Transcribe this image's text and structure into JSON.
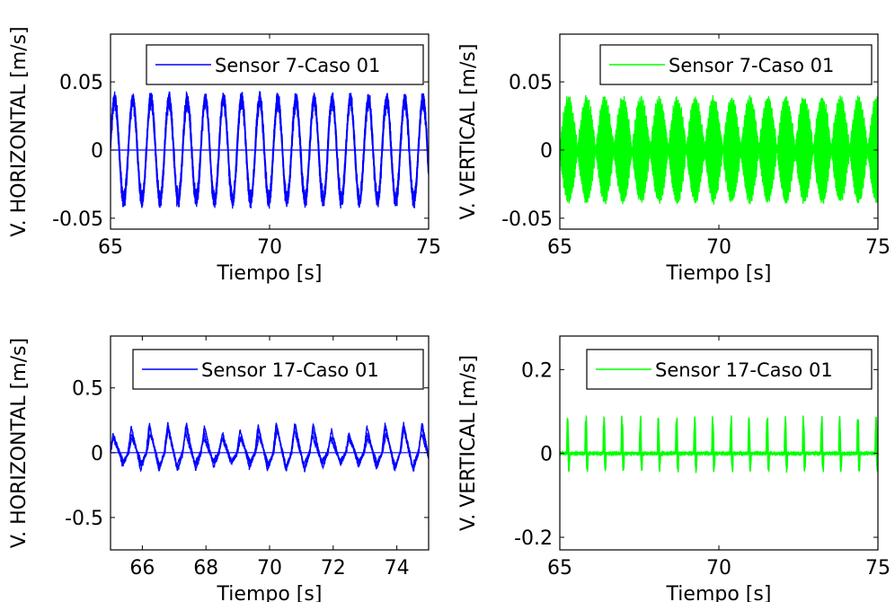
{
  "chart_data": [
    {
      "type": "line",
      "xlabel": "Tiempo [s]",
      "ylabel": "V. HORIZONTAL [m/s]",
      "xlim": [
        65,
        75
      ],
      "ylim": [
        -0.058,
        0.085
      ],
      "xticks": [
        65,
        70,
        75
      ],
      "xtick_labels": [
        "65",
        "70",
        "75"
      ],
      "yticks": [
        -0.05,
        0,
        0.05
      ],
      "ytick_labels": [
        "-0.05",
        "0",
        "0.05"
      ],
      "legend_position": "top-right",
      "series": [
        {
          "name": "Sensor 7-Caso 01",
          "color": "#0000ff",
          "signal": {
            "kind": "oscillation",
            "t0": 65,
            "t1": 75,
            "period": 0.57,
            "amplitude": 0.041,
            "jitter": 0.005,
            "carrier": 40,
            "traces": 3
          }
        }
      ]
    },
    {
      "type": "line",
      "xlabel": "Tiempo [s]",
      "ylabel": "V. VERTICAL [m/s]",
      "xlim": [
        65,
        75
      ],
      "ylim": [
        -0.058,
        0.085
      ],
      "xticks": [
        65,
        70,
        75
      ],
      "xtick_labels": [
        "65",
        "70",
        "75"
      ],
      "yticks": [
        -0.05,
        0,
        0.05
      ],
      "ytick_labels": [
        "-0.05",
        "0",
        "0.05"
      ],
      "legend_position": "top-right",
      "series": [
        {
          "name": "Sensor 7-Caso 01",
          "color": "#00ff00",
          "signal": {
            "kind": "dense-oscillation",
            "t0": 65,
            "t1": 75,
            "period": 0.57,
            "amplitude": 0.039,
            "jitter": 0.004,
            "carrier": 60,
            "traces": 3
          }
        }
      ]
    },
    {
      "type": "line",
      "xlabel": "Tiempo [s]",
      "ylabel": "V. HORIZONTAL [m/s]",
      "xlim": [
        65,
        75
      ],
      "ylim": [
        -0.75,
        0.9
      ],
      "xticks": [
        66,
        68,
        70,
        72,
        74
      ],
      "xtick_labels": [
        "66",
        "68",
        "70",
        "72",
        "74"
      ],
      "yticks": [
        -0.5,
        0,
        0.5
      ],
      "ytick_labels": [
        "-0.5",
        "0",
        "0.5"
      ],
      "legend_position": "top-right",
      "series": [
        {
          "name": "Sensor 17-Caso 01",
          "color": "#0000ff",
          "signal": {
            "kind": "sawtooth",
            "t0": 65,
            "t1": 75,
            "period": 0.57,
            "amplitude": 0.2,
            "depth": 0.12,
            "jitter": 0.03,
            "traces": 3
          }
        }
      ]
    },
    {
      "type": "line",
      "xlabel": "Tiempo [s]",
      "ylabel": "V. VERTICAL [m/s]",
      "xlim": [
        65,
        75
      ],
      "ylim": [
        -0.23,
        0.28
      ],
      "xticks": [
        65,
        70,
        75
      ],
      "xtick_labels": [
        "65",
        "70",
        "75"
      ],
      "yticks": [
        -0.2,
        0,
        0.2
      ],
      "ytick_labels": [
        "-0.2",
        "0",
        "0.2"
      ],
      "legend_position": "top-right",
      "series": [
        {
          "name": "Sensor 17-Caso 01",
          "color": "#00ff00",
          "signal": {
            "kind": "spikes",
            "t0": 65,
            "t1": 75,
            "period": 0.57,
            "amplitude": 0.09,
            "max": 0.14,
            "min": -0.09,
            "jitter": 0.006,
            "traces": 3
          }
        }
      ]
    }
  ]
}
